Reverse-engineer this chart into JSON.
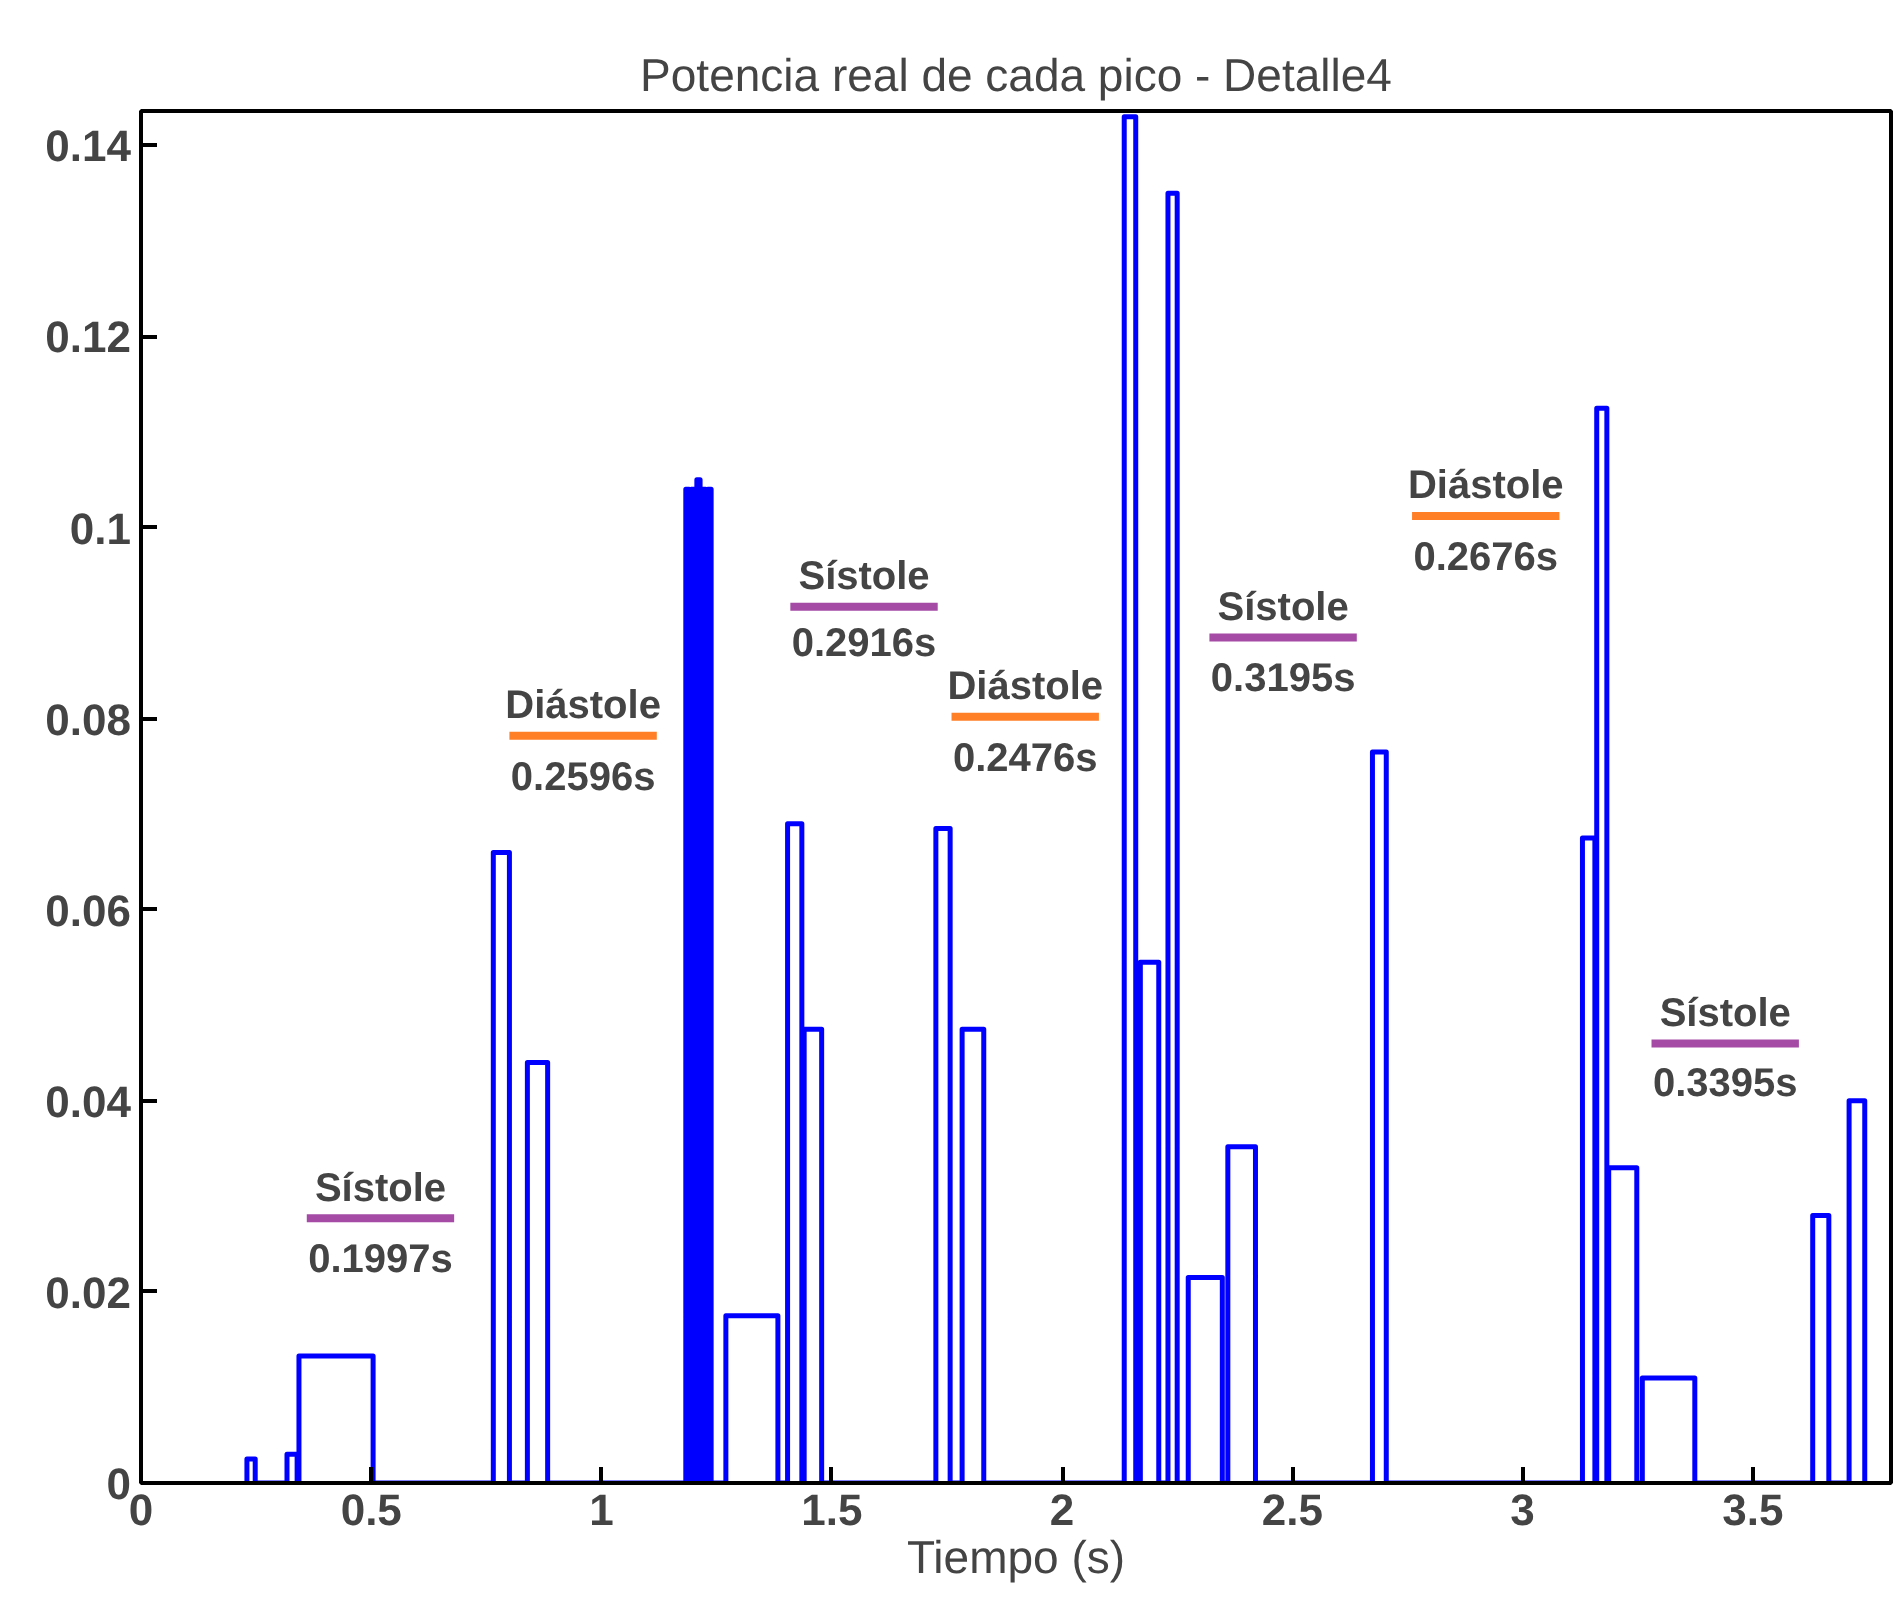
{
  "chart_data": {
    "type": "line",
    "title": "Potencia real de cada pico - Detalle4",
    "xlabel": "Tiempo (s)",
    "x": [
      0.23,
      0.23,
      0.248,
      0.248,
      0.317,
      0.317,
      0.339,
      0.339,
      0.343,
      0.343,
      0.504,
      0.504,
      0.765,
      0.765,
      0.8,
      0.8,
      0.839,
      0.839,
      0.883,
      0.883,
      1.183,
      1.183,
      1.19,
      1.19,
      1.195,
      1.195,
      1.202,
      1.202,
      1.207,
      1.207,
      1.214,
      1.214,
      1.219,
      1.219,
      1.226,
      1.226,
      1.231,
      1.231,
      1.238,
      1.238,
      1.27,
      1.27,
      1.383,
      1.383,
      1.404,
      1.404,
      1.435,
      1.435,
      1.44,
      1.44,
      1.478,
      1.478,
      1.726,
      1.726,
      1.757,
      1.757,
      1.783,
      1.783,
      1.83,
      1.83,
      2.135,
      2.135,
      2.16,
      2.16,
      2.17,
      2.17,
      2.21,
      2.21,
      2.23,
      2.23,
      2.25,
      2.25,
      2.274,
      2.274,
      2.348,
      2.348,
      2.36,
      2.36,
      2.42,
      2.42,
      2.674,
      2.674,
      2.704,
      2.704,
      3.13,
      3.13,
      3.157,
      3.157,
      3.161,
      3.161,
      3.183,
      3.183,
      3.187,
      3.187,
      3.248,
      3.248,
      3.26,
      3.26,
      3.374,
      3.374,
      3.63,
      3.63,
      3.665,
      3.665,
      3.709,
      3.709,
      3.743,
      3.743
    ],
    "values": [
      0,
      0.0025,
      0.0025,
      0,
      0,
      0.003,
      0.003,
      0,
      0,
      0.0133,
      0.0133,
      0,
      0,
      0.066,
      0.066,
      0,
      0,
      0.044,
      0.044,
      0,
      0,
      0.104,
      0.104,
      0,
      0,
      0.104,
      0.104,
      0,
      0,
      0.105,
      0.105,
      0,
      0,
      0.104,
      0.104,
      0,
      0,
      0.104,
      0.104,
      0,
      0,
      0.0175,
      0.0175,
      0,
      0,
      0.069,
      0.069,
      0,
      0,
      0.0475,
      0.0475,
      0,
      0,
      0.0685,
      0.0685,
      0,
      0,
      0.0475,
      0.0475,
      0,
      0,
      0.143,
      0.143,
      0,
      0,
      0.0545,
      0.0545,
      0,
      0,
      0.135,
      0.135,
      0,
      0,
      0.0215,
      0.0215,
      0,
      0,
      0.0352,
      0.0352,
      0,
      0,
      0.0765,
      0.0765,
      0,
      0,
      0.0675,
      0.0675,
      0,
      0,
      0.1125,
      0.1125,
      0,
      0,
      0.033,
      0.033,
      0,
      0,
      0.011,
      0.011,
      0,
      0,
      0.028,
      0.028,
      0,
      0,
      0.04,
      0.04,
      0
    ],
    "color": "#0000ff",
    "xlim": [
      0,
      3.8
    ],
    "ylim": [
      0,
      0.1436
    ],
    "xticks": [
      0,
      0.5,
      1,
      1.5,
      2,
      2.5,
      3,
      3.5
    ],
    "yticks": [
      0,
      0.02,
      0.04,
      0.06,
      0.08,
      0.1,
      0.12,
      0.14
    ],
    "grid": false,
    "annotations": [
      "Sístole",
      "0.1997s",
      "Diástole",
      "0.2596s",
      "Sístole",
      "0.2916s",
      "Diástole",
      "0.2476s",
      "Sístole",
      "0.3195s",
      "Diástole",
      "0.2676s",
      "Sístole",
      "0.3395s"
    ]
  }
}
